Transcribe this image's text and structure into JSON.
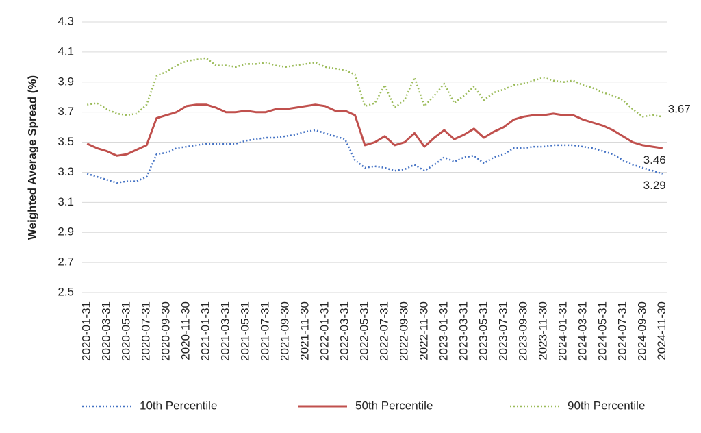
{
  "chart_data": {
    "type": "line",
    "y_label": "Weighted Average Spread (%)",
    "categories": [
      "2020-01-31",
      null,
      "2020-03-31",
      null,
      "2020-05-31",
      null,
      "2020-07-31",
      null,
      "2020-09-30",
      null,
      "2020-11-30",
      null,
      "2021-01-31",
      null,
      "2021-03-31",
      null,
      "2021-05-31",
      null,
      "2021-07-31",
      null,
      "2021-09-30",
      null,
      "2021-11-30",
      null,
      "2022-01-31",
      null,
      "2022-03-31",
      null,
      "2022-05-31",
      null,
      "2022-07-31",
      null,
      "2022-09-30",
      null,
      "2022-11-30",
      null,
      "2023-01-31",
      null,
      "2023-03-31",
      null,
      "2023-05-31",
      null,
      "2023-07-31",
      null,
      "2023-09-30",
      null,
      "2023-11-30",
      null,
      "2024-01-31",
      null,
      "2024-03-31",
      null,
      "2024-05-31",
      null,
      "2024-07-31",
      null,
      "2024-09-30",
      null,
      "2024-11-30"
    ],
    "series": [
      {
        "name": "10th Percentile",
        "color": "#4472c4",
        "dashed": true,
        "values": [
          3.29,
          3.27,
          3.25,
          3.23,
          3.24,
          3.24,
          3.27,
          3.42,
          3.43,
          3.46,
          3.47,
          3.48,
          3.49,
          3.49,
          3.49,
          3.49,
          3.51,
          3.52,
          3.53,
          3.53,
          3.54,
          3.55,
          3.57,
          3.58,
          3.56,
          3.54,
          3.52,
          3.38,
          3.33,
          3.34,
          3.33,
          3.31,
          3.32,
          3.35,
          3.31,
          3.35,
          3.4,
          3.37,
          3.4,
          3.41,
          3.36,
          3.4,
          3.42,
          3.46,
          3.46,
          3.47,
          3.47,
          3.48,
          3.48,
          3.48,
          3.47,
          3.46,
          3.44,
          3.42,
          3.38,
          3.35,
          3.33,
          3.31,
          3.29
        ]
      },
      {
        "name": "50th Percentile",
        "color": "#c0504d",
        "dashed": false,
        "values": [
          3.49,
          3.46,
          3.44,
          3.41,
          3.42,
          3.45,
          3.48,
          3.66,
          3.68,
          3.7,
          3.74,
          3.75,
          3.75,
          3.73,
          3.7,
          3.7,
          3.71,
          3.7,
          3.7,
          3.72,
          3.72,
          3.73,
          3.74,
          3.75,
          3.74,
          3.71,
          3.71,
          3.68,
          3.48,
          3.5,
          3.54,
          3.48,
          3.5,
          3.56,
          3.47,
          3.53,
          3.58,
          3.52,
          3.55,
          3.59,
          3.53,
          3.57,
          3.6,
          3.65,
          3.67,
          3.68,
          3.68,
          3.69,
          3.68,
          3.68,
          3.65,
          3.63,
          3.61,
          3.58,
          3.54,
          3.5,
          3.48,
          3.47,
          3.46
        ]
      },
      {
        "name": "90th Percentile",
        "color": "#9bbb59",
        "dashed": true,
        "values": [
          3.75,
          3.76,
          3.72,
          3.69,
          3.68,
          3.69,
          3.75,
          3.94,
          3.97,
          4.01,
          4.04,
          4.05,
          4.06,
          4.01,
          4.01,
          4.0,
          4.02,
          4.02,
          4.03,
          4.01,
          4.0,
          4.01,
          4.02,
          4.03,
          4.0,
          3.99,
          3.98,
          3.95,
          3.74,
          3.76,
          3.88,
          3.73,
          3.78,
          3.93,
          3.74,
          3.81,
          3.89,
          3.76,
          3.81,
          3.87,
          3.78,
          3.83,
          3.85,
          3.88,
          3.89,
          3.91,
          3.93,
          3.91,
          3.9,
          3.91,
          3.88,
          3.86,
          3.83,
          3.81,
          3.78,
          3.72,
          3.67,
          3.68,
          3.67
        ]
      }
    ],
    "ylim": [
      2.5,
      4.3
    ],
    "yticks": [
      2.5,
      2.7,
      2.9,
      3.1,
      3.3,
      3.5,
      3.7,
      3.9,
      4.1,
      4.3
    ],
    "grid": true,
    "legend": "bottom"
  }
}
